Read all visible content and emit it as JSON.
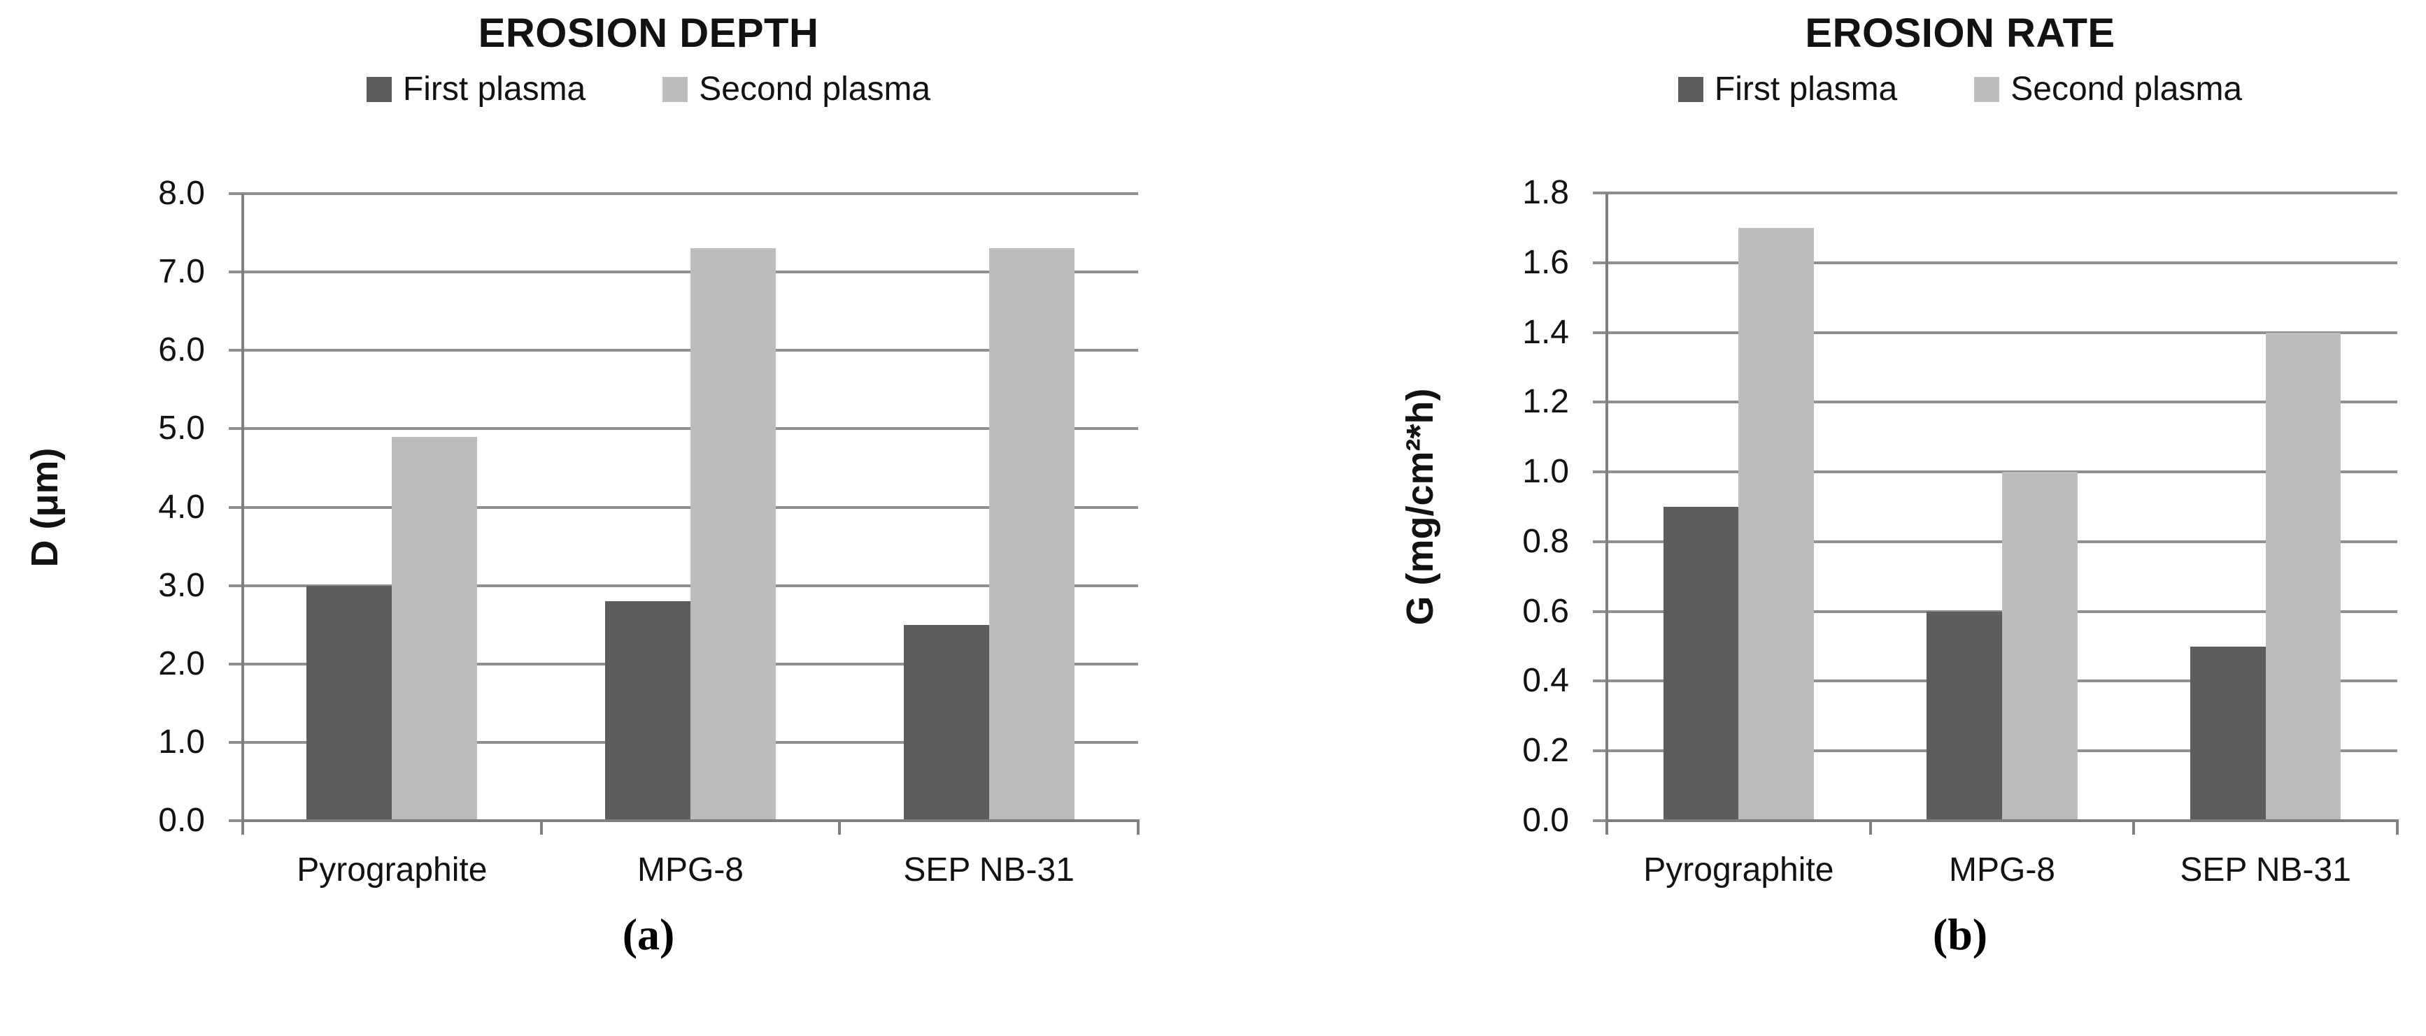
{
  "page": {
    "background": "#ffffff"
  },
  "colors": {
    "first_plasma": "#5d5d5d",
    "second_plasma": "#bcbcbc",
    "gridline": "#8f8f8f",
    "axis": "#7f7f7f",
    "text": "#121212"
  },
  "chart_data": [
    {
      "type": "bar",
      "title": "EROSION DEPTH",
      "caption": "(a)",
      "categories": [
        "Pyrographite",
        "MPG-8",
        "SEP NB-31"
      ],
      "series": [
        {
          "name": "First plasma",
          "color_key": "first_plasma",
          "values": [
            3.0,
            2.8,
            2.5
          ]
        },
        {
          "name": "Second plasma",
          "color_key": "second_plasma",
          "values": [
            4.9,
            7.3,
            7.3
          ]
        }
      ],
      "xlabel": "",
      "ylabel": "D (μm)",
      "ylim": [
        0,
        8.0
      ],
      "ytick_step": 1.0,
      "ytick_labels": [
        "0.0",
        "1.0",
        "2.0",
        "3.0",
        "4.0",
        "5.0",
        "6.0",
        "7.0",
        "8.0"
      ],
      "grid": true,
      "legend_position": "top"
    },
    {
      "type": "bar",
      "title": "EROSION RATE",
      "caption": "(b)",
      "categories": [
        "Pyrographite",
        "MPG-8",
        "SEP NB-31"
      ],
      "series": [
        {
          "name": "First plasma",
          "color_key": "first_plasma",
          "values": [
            0.9,
            0.6,
            0.5
          ]
        },
        {
          "name": "Second plasma",
          "color_key": "second_plasma",
          "values": [
            1.7,
            1.0,
            1.4
          ]
        }
      ],
      "xlabel": "",
      "ylabel": "G (mg/cm²*h)",
      "ylim": [
        0,
        1.8
      ],
      "ytick_step": 0.2,
      "ytick_labels": [
        "0.0",
        "0.2",
        "0.4",
        "0.6",
        "0.8",
        "1.0",
        "1.2",
        "1.4",
        "1.6",
        "1.8"
      ],
      "grid": true,
      "legend_position": "top"
    }
  ]
}
